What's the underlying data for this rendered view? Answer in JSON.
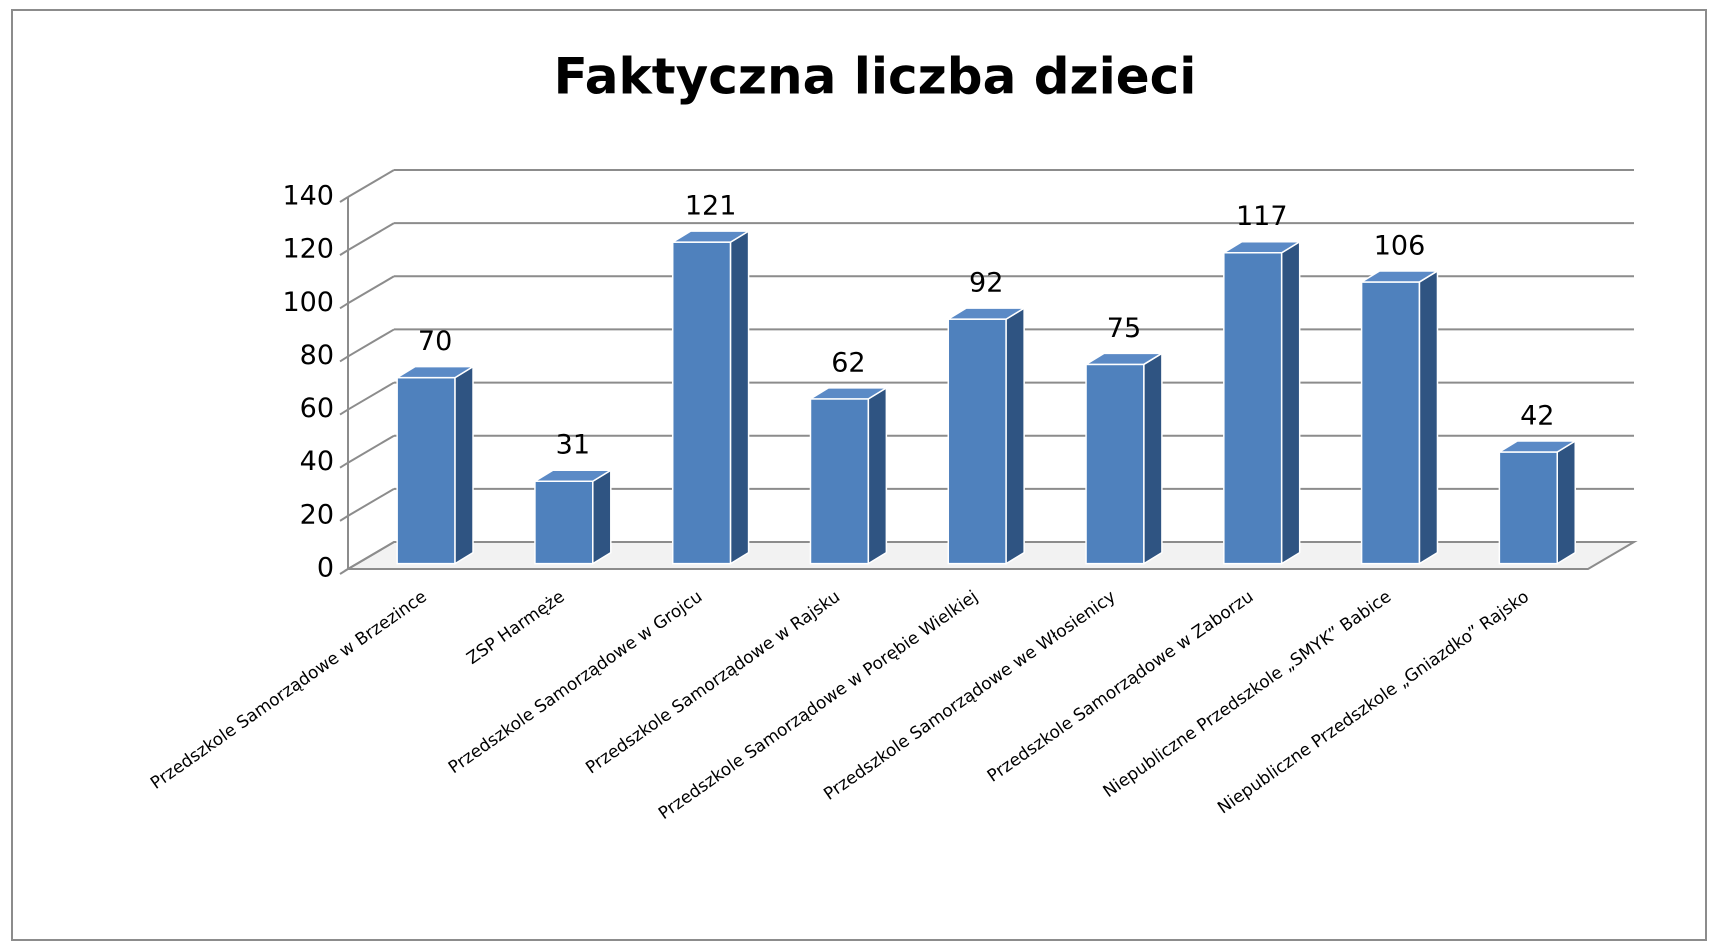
{
  "chart_data": {
    "type": "bar3d",
    "title": "Faktyczna liczba dzieci",
    "categories": [
      "Przedszkole Samorządowe w Brzezince",
      "ZSP Harmęże",
      "Przedszkole Samorządowe w Grojcu",
      "Przedszkole Samorządowe w Rajsku",
      "Przedszkole Samorządowe w Porębie Wielkiej",
      "Przedszkole Samorządowe we Włosienicy",
      "Przedszkole Samorządowe w Zaborzu",
      "Niepubliczne Przedszkole „SMYK” Babice",
      "Niepubliczne Przedszkole „Gniazdko” Rajsko"
    ],
    "values": [
      70,
      31,
      121,
      62,
      92,
      75,
      117,
      106,
      42
    ],
    "color": "#4f81bd",
    "ylim": [
      0,
      140
    ],
    "yticks": [
      0,
      20,
      40,
      60,
      80,
      100,
      120,
      140
    ],
    "grid": true
  }
}
